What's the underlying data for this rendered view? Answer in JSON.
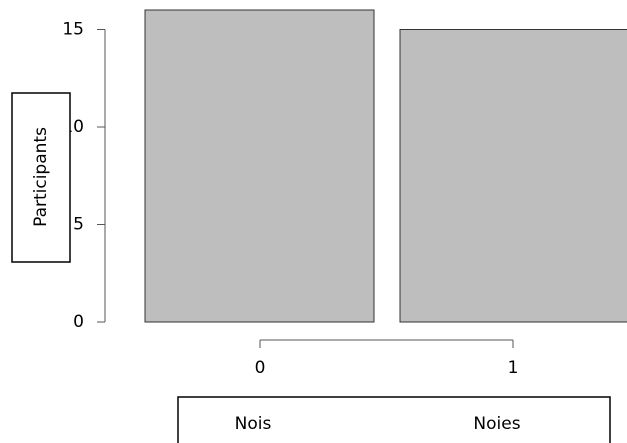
{
  "chart_data": {
    "type": "bar",
    "y_label": "Participants",
    "categories": [
      "0",
      "1"
    ],
    "values": [
      16,
      15
    ],
    "color": "#bebebe",
    "ylim": [
      0,
      16
    ],
    "yticks": [
      0,
      5,
      10,
      15
    ],
    "annotations": [
      "Nois",
      "Noies"
    ]
  }
}
